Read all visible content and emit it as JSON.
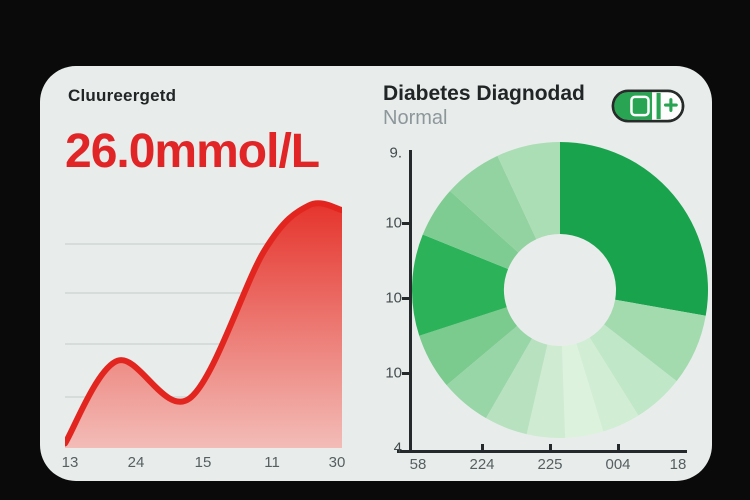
{
  "frame": {
    "bg": "#0a0a0a",
    "panel_bg": "#e8edec"
  },
  "glucose": {
    "title": "Cluureergetd",
    "value": "26.0mmol/L",
    "value_color": "#e12527"
  },
  "diabetes": {
    "title": "Diabetes Diagnodad",
    "subtitle": "Normal",
    "subtitle_color": "#8d979a",
    "icon": "pill-capsule-plus-icon",
    "icon_green": "#28a452",
    "icon_outline": "#272c2b"
  },
  "chart_data": [
    {
      "type": "area",
      "title": "Cluureergetd",
      "xlabel": "",
      "ylabel": "",
      "x_tick_labels": [
        "13",
        "24",
        "15",
        "11",
        "30"
      ],
      "points": [
        {
          "x": 0.0,
          "y": 0.5
        },
        {
          "x": 0.19,
          "y": 9.5
        },
        {
          "x": 0.45,
          "y": 5.4
        },
        {
          "x": 0.72,
          "y": 21.5
        },
        {
          "x": 0.88,
          "y": 26.4
        },
        {
          "x": 1.0,
          "y": 25.9
        }
      ],
      "ylim": [
        0,
        27
      ],
      "unit": "mmol/L",
      "line_color": "#e2251f",
      "fill_gradient_top": "#e5342c",
      "fill_gradient_bottom": "#f3bcb7",
      "grid": true
    },
    {
      "type": "donut",
      "title": "Diabetes Diagnodad",
      "y_tick_labels": [
        "9.",
        "10",
        "10",
        "10",
        "4"
      ],
      "x_tick_labels": [
        "58",
        "224",
        "225",
        "004",
        "18"
      ],
      "hole_ratio": 0.38,
      "segments": [
        {
          "angle": 100,
          "color": "#18a34c"
        },
        {
          "angle": 28,
          "color": "#a3dbaf"
        },
        {
          "angle": 20,
          "color": "#c0e7c7"
        },
        {
          "angle": 15,
          "color": "#d1edd4"
        },
        {
          "angle": 15,
          "color": "#dcf2dd"
        },
        {
          "angle": 15,
          "color": "#cfecd3"
        },
        {
          "angle": 17,
          "color": "#b8e2bf"
        },
        {
          "angle": 20,
          "color": "#99d6a7"
        },
        {
          "angle": 22,
          "color": "#7bca8e"
        },
        {
          "angle": 40,
          "color": "#2cb35a"
        },
        {
          "angle": 20,
          "color": "#7fcc92"
        },
        {
          "angle": 23,
          "color": "#93d3a1"
        },
        {
          "angle": 25,
          "color": "#abdeb5"
        }
      ]
    }
  ]
}
